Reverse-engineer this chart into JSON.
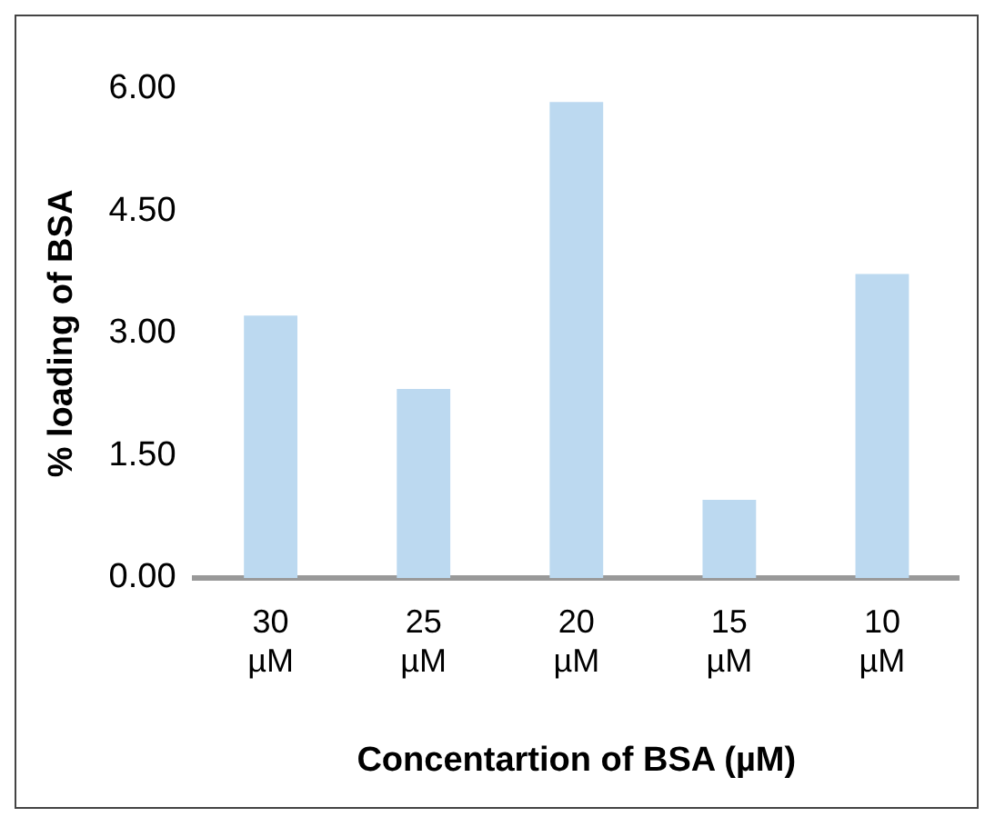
{
  "chart_data": {
    "type": "bar",
    "xlabel": "Concentartion of BSA (µM)",
    "ylabel": "% loading of BSA",
    "categories": [
      "30 µM",
      "25 µM",
      "20 µM",
      "15 µM",
      "10 µM"
    ],
    "values": [
      3.22,
      2.32,
      5.84,
      0.96,
      3.73
    ],
    "color": "#bcd9f0",
    "ylim": [
      0,
      6
    ],
    "yticks": [
      {
        "value": 0,
        "label": "0.00"
      },
      {
        "value": 1.5,
        "label": "1.50"
      },
      {
        "value": 3,
        "label": "3.00"
      },
      {
        "value": 4.5,
        "label": "4.50"
      },
      {
        "value": 6,
        "label": "6.00"
      }
    ],
    "grid": false,
    "legend": false
  }
}
